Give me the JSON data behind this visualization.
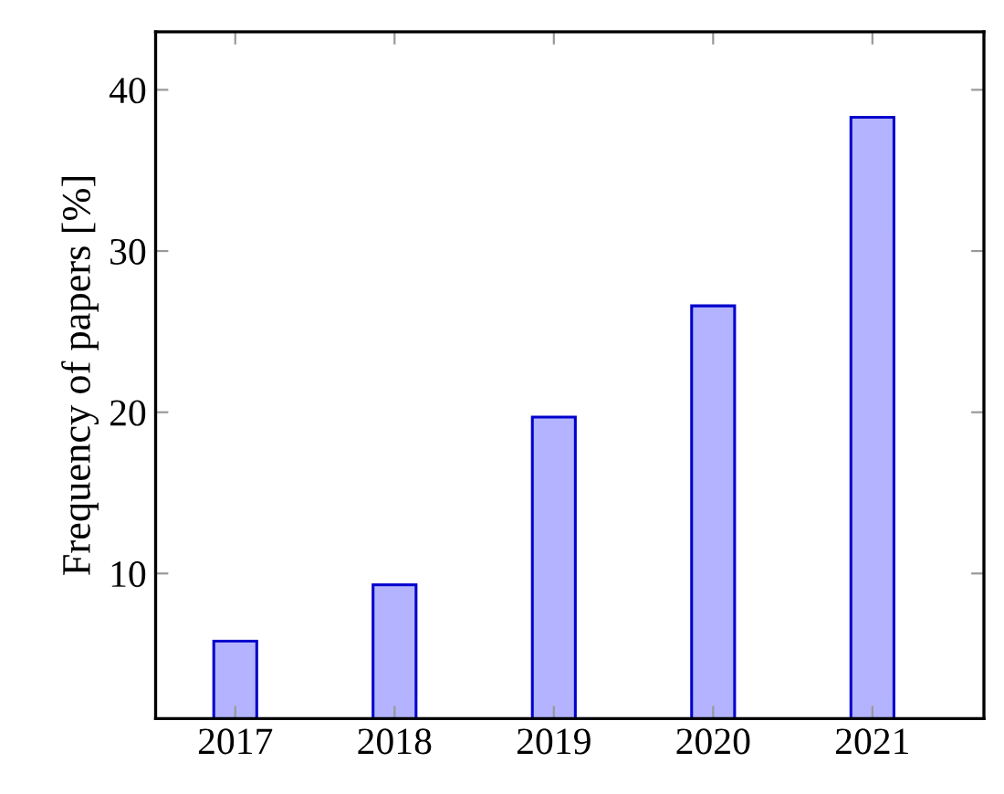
{
  "chart_data": {
    "type": "bar",
    "ylabel": "Frequency of papers [%]",
    "categories": [
      "2017",
      "2018",
      "2019",
      "2020",
      "2021"
    ],
    "values": [
      5.8,
      9.3,
      19.7,
      26.6,
      38.3
    ],
    "color": "#b3b3ff",
    "ylim": [
      1,
      43.6
    ],
    "yticks": [
      10,
      20,
      30,
      40
    ],
    "grid": false
  }
}
